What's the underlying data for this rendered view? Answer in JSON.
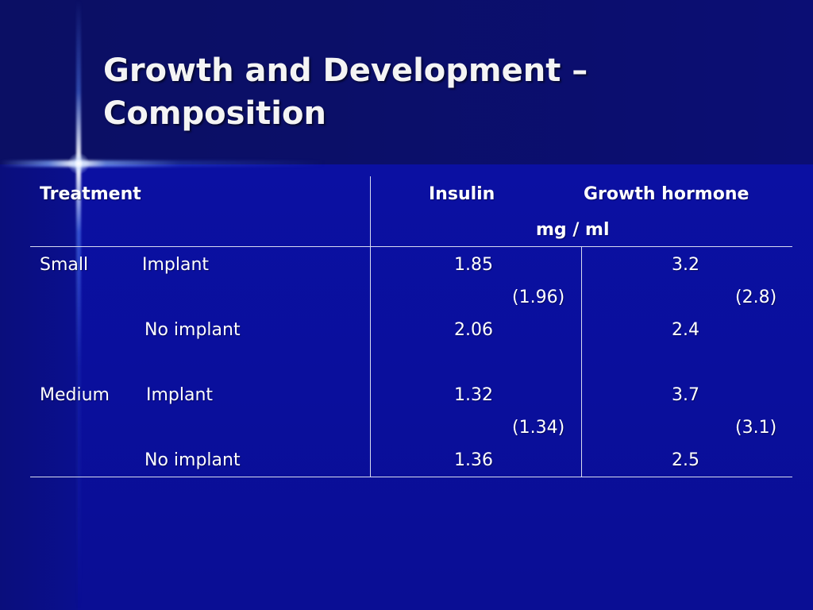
{
  "slide": {
    "title_line1": "Growth and Development –",
    "title_line2": "Composition"
  },
  "table": {
    "headers": {
      "treatment": "Treatment",
      "insulin": "Insulin",
      "growth_hormone": "Growth hormone",
      "units": "mg / ml"
    },
    "groups": [
      {
        "size": "Small",
        "rows": [
          {
            "treatment": "Implant",
            "insulin": "1.85",
            "growth_hormone": "3.2"
          },
          {
            "treatment": "No implant",
            "insulin": "2.06",
            "growth_hormone": "2.4"
          }
        ],
        "avg_insulin": "(1.96)",
        "avg_growth_hormone": "(2.8)"
      },
      {
        "size": "Medium",
        "rows": [
          {
            "treatment": "Implant",
            "insulin": "1.32",
            "growth_hormone": "3.7"
          },
          {
            "treatment": "No implant",
            "insulin": "1.36",
            "growth_hormone": "2.5"
          }
        ],
        "avg_insulin": "(1.34)",
        "avg_growth_hormone": "(3.1)"
      }
    ]
  },
  "colors": {
    "background": "#0a0e8a",
    "text": "#ffffff",
    "rule": "#d8dcf0"
  }
}
